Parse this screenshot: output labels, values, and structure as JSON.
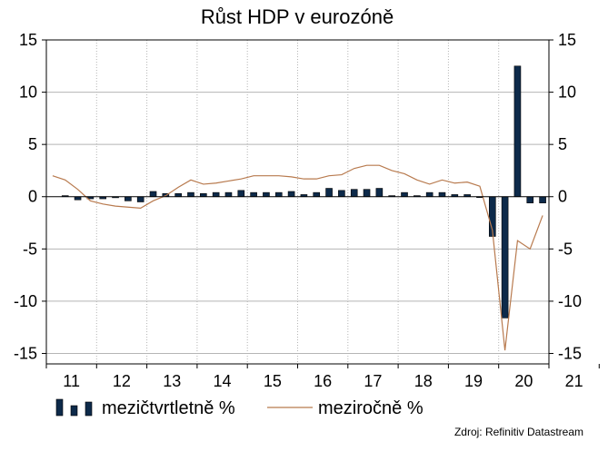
{
  "chart_data": {
    "type": "bar",
    "title": "Růst HDP v eurozóně",
    "source": "Zdroj: Refinitiv Datastream",
    "ylim": [
      -16,
      15
    ],
    "y_ticks": [
      15,
      10,
      5,
      0,
      -5,
      -10,
      -15
    ],
    "x_tick_labels": [
      "11",
      "12",
      "13",
      "14",
      "15",
      "16",
      "17",
      "18",
      "19",
      "20",
      "21"
    ],
    "grid": true,
    "legend_position": "bottom-left",
    "series": [
      {
        "name": "mezičtvrtletně %",
        "type": "bar",
        "color": "#0d2a4a",
        "values": [
          0.1,
          -0.3,
          -0.2,
          -0.2,
          -0.1,
          -0.4,
          -0.5,
          0.5,
          0.3,
          0.3,
          0.4,
          0.3,
          0.4,
          0.4,
          0.6,
          0.4,
          0.4,
          0.4,
          0.5,
          0.2,
          0.4,
          0.8,
          0.6,
          0.7,
          0.7,
          0.8,
          0.1,
          0.4,
          0.1,
          0.4,
          0.4,
          0.2,
          0.2,
          0.0,
          -3.8,
          -11.6,
          12.5,
          -0.6,
          -0.6
        ]
      },
      {
        "name": "meziročně %",
        "type": "line",
        "color": "#b87a4e",
        "values": [
          2.0,
          1.6,
          0.7,
          -0.4,
          -0.7,
          -0.9,
          -1.0,
          -1.1,
          -0.4,
          0.1,
          0.9,
          1.6,
          1.2,
          1.3,
          1.5,
          1.7,
          2.0,
          2.0,
          2.0,
          1.9,
          1.7,
          1.7,
          2.0,
          2.1,
          2.7,
          3.0,
          3.0,
          2.5,
          2.2,
          1.6,
          1.2,
          1.6,
          1.3,
          1.4,
          1.0,
          -3.2,
          -14.7,
          -4.2,
          -5.0,
          -1.8
        ]
      }
    ]
  }
}
